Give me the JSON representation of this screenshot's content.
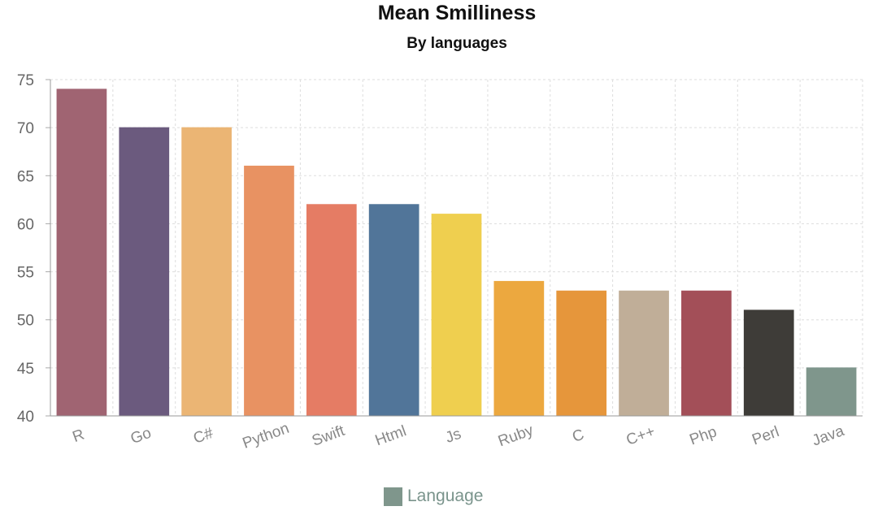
{
  "chart_data": {
    "type": "bar",
    "title": "Mean Smilliness",
    "subtitle": "By languages",
    "xlabel": "",
    "ylabel": "",
    "categories": [
      "R",
      "Go",
      "C#",
      "Python",
      "Swift",
      "Html",
      "Js",
      "Ruby",
      "C",
      "C++",
      "Php",
      "Perl",
      "Java"
    ],
    "values": [
      74,
      70,
      70,
      66,
      62,
      62,
      61,
      54,
      53,
      53,
      53,
      51,
      45
    ],
    "colors": [
      "#a06472",
      "#6b5a7e",
      "#ebb574",
      "#e89262",
      "#e57c64",
      "#517599",
      "#efcf4f",
      "#eca83f",
      "#e6963b",
      "#c0ae98",
      "#a34f58",
      "#3e3c38",
      "#7f968c"
    ],
    "ylim": [
      40,
      75
    ],
    "yticks": [
      40,
      45,
      50,
      55,
      60,
      65,
      70,
      75
    ],
    "grid": true,
    "legend": {
      "position": "bottom",
      "label": "Language",
      "color": "#7f968c"
    }
  }
}
